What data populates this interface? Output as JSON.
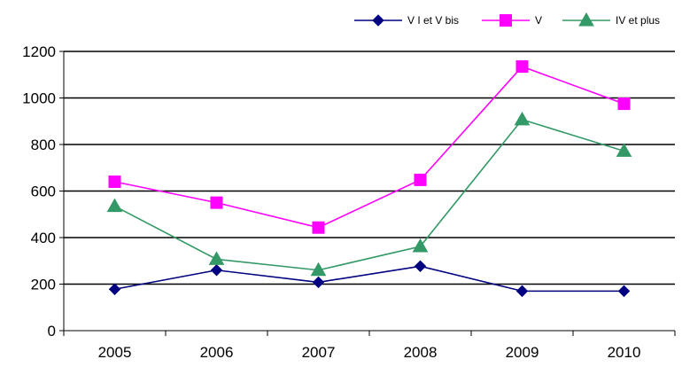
{
  "chart_data": {
    "type": "line",
    "categories": [
      "2005",
      "2006",
      "2007",
      "2008",
      "2009",
      "2010"
    ],
    "series": [
      {
        "name": "V I et V bis",
        "values": [
          178,
          260,
          208,
          277,
          170,
          170
        ],
        "color": "#000080",
        "marker": "diamond"
      },
      {
        "name": "V",
        "values": [
          640,
          550,
          443,
          648,
          1135,
          975
        ],
        "color": "#FF00FF",
        "marker": "square"
      },
      {
        "name": "IV et plus",
        "values": [
          535,
          307,
          260,
          362,
          907,
          772
        ],
        "color": "#339966",
        "marker": "triangle"
      }
    ],
    "ylim": [
      0,
      1200
    ],
    "yticks": [
      "0",
      "200",
      "400",
      "600",
      "800",
      "1000",
      "1200"
    ],
    "grid": true,
    "legend": "top-right"
  }
}
